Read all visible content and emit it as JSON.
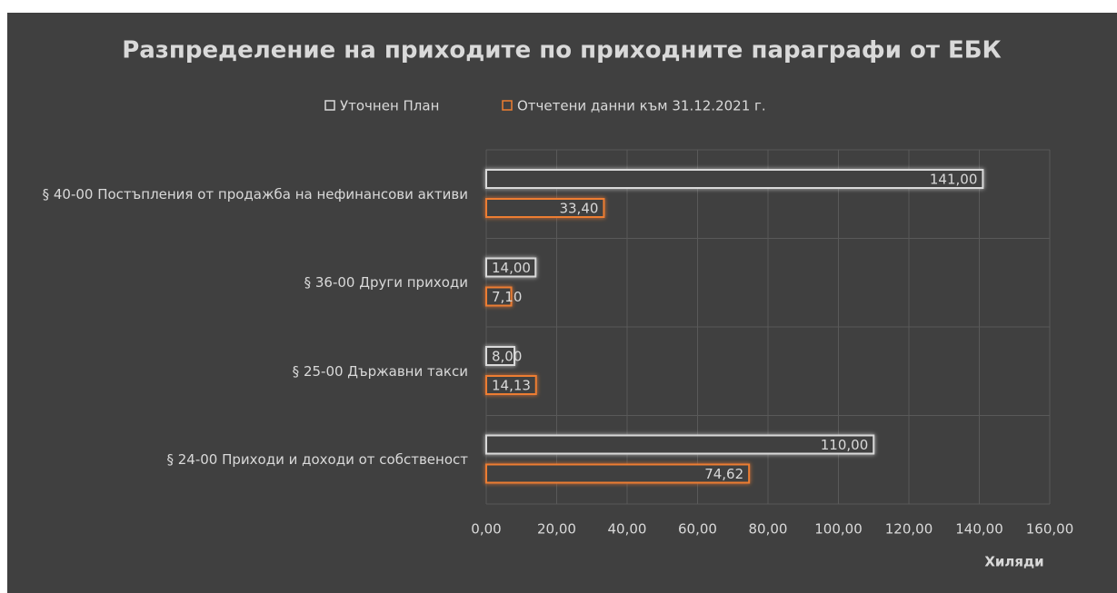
{
  "chart_data": {
    "type": "hbar",
    "title": "Разпределение на приходите по приходните параграфи от ЕБК",
    "categories": [
      "§ 40-00 Постъпления от продажба на нефинансови активи",
      "§ 36-00 Други приходи",
      "§ 25-00 Държавни такси",
      "§ 24-00 Приходи и доходи от собственост"
    ],
    "series": [
      {
        "name": "Уточнен План",
        "color": "#d9d9d9",
        "values": [
          141,
          14,
          8,
          110
        ],
        "value_labels": [
          "141,00",
          "14,00",
          "8,00",
          "110,00"
        ]
      },
      {
        "name": "Отчетени данни към 31.12.2021 г.",
        "color": "#ed7d31",
        "values": [
          33.4,
          7.1,
          14.13,
          74.62
        ],
        "value_labels": [
          "33,40",
          "7,10",
          "14,13",
          "74,62"
        ]
      }
    ],
    "xlim": [
      0,
      160
    ],
    "xticks": [
      {
        "value": 0,
        "label": "0,00"
      },
      {
        "value": 20,
        "label": "20,00"
      },
      {
        "value": 40,
        "label": "40,00"
      },
      {
        "value": 60,
        "label": "60,00"
      },
      {
        "value": 80,
        "label": "80,00"
      },
      {
        "value": 100,
        "label": "100,00"
      },
      {
        "value": 120,
        "label": "120,00"
      },
      {
        "value": 140,
        "label": "140,00"
      },
      {
        "value": 160,
        "label": "160,00"
      }
    ],
    "xlabel": "Хиляди",
    "grid": true
  }
}
